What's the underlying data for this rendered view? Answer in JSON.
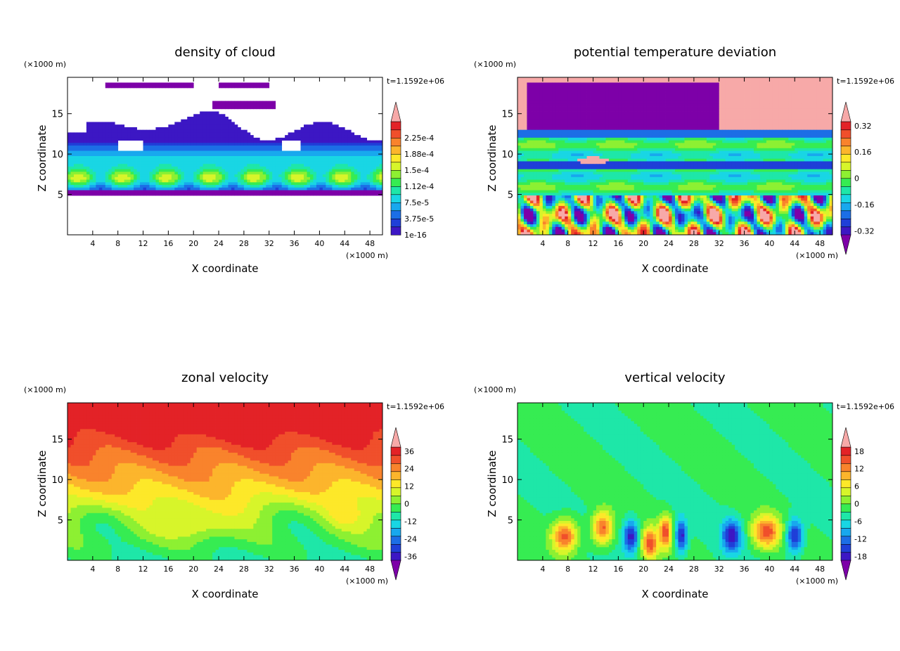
{
  "figure": {
    "time_label": "t=1.1592e+06",
    "unit_label": "(×1000 m)"
  },
  "colormap": [
    "#7d00a8",
    "#3c17c4",
    "#1f3fd8",
    "#1c6ee6",
    "#18a8ee",
    "#19d6e4",
    "#1ee7a8",
    "#36ec52",
    "#8df032",
    "#d7f52a",
    "#fde829",
    "#fcb52c",
    "#f9832c",
    "#f04f2b",
    "#e32227",
    "#f7a9a8"
  ],
  "chart_data": [
    {
      "type": "heatmap",
      "title": "density of cloud",
      "xlabel": "X coordinate",
      "ylabel": "Z coordinate",
      "x_unit": "(×1000 m)",
      "y_unit": "(×1000 m)",
      "xlim": [
        0,
        50
      ],
      "ylim": [
        0,
        19.5
      ],
      "x_ticks": [
        4,
        8,
        12,
        16,
        20,
        24,
        28,
        32,
        36,
        40,
        44,
        48
      ],
      "y_ticks": [
        5,
        10,
        15
      ],
      "time": "t=1.1592e+06",
      "colorbar": {
        "labels": [
          "1e-16",
          "3.75e-5",
          "7.5e-5",
          "1.12e-4",
          "1.5e-4",
          "1.88e-4",
          "2.25e-4"
        ],
        "range": [
          0,
          0.000262
        ],
        "over_arrow": true,
        "under_arrow": false
      },
      "field": "cloud",
      "description_values": {
        "cloud_base": 5,
        "cloud_top": 19
      }
    },
    {
      "type": "heatmap",
      "title": "potential temperature deviation",
      "xlabel": "X coordinate",
      "ylabel": "Z coordinate",
      "x_unit": "(×1000 m)",
      "y_unit": "(×1000 m)",
      "xlim": [
        0,
        50
      ],
      "ylim": [
        0,
        19.5
      ],
      "x_ticks": [
        4,
        8,
        12,
        16,
        20,
        24,
        28,
        32,
        36,
        40,
        44,
        48
      ],
      "y_ticks": [
        5,
        10,
        15
      ],
      "time": "t=1.1592e+06",
      "colorbar": {
        "labels": [
          "-0.32",
          "-0.16",
          "0",
          "0.16",
          "0.32"
        ],
        "range": [
          -0.4,
          0.4
        ],
        "over_arrow": true,
        "under_arrow": true
      },
      "field": "theta"
    },
    {
      "type": "heatmap",
      "title": "zonal velocity",
      "xlabel": "X coordinate",
      "ylabel": "Z coordinate",
      "x_unit": "(×1000 m)",
      "y_unit": "(×1000 m)",
      "xlim": [
        0,
        50
      ],
      "ylim": [
        0,
        19.5
      ],
      "x_ticks": [
        4,
        8,
        12,
        16,
        20,
        24,
        28,
        32,
        36,
        40,
        44,
        48
      ],
      "y_ticks": [
        5,
        10,
        15
      ],
      "time": "t=1.1592e+06",
      "colorbar": {
        "labels": [
          "-36",
          "-24",
          "-12",
          "0",
          "12",
          "24",
          "36"
        ],
        "range": [
          -42,
          42
        ],
        "over_arrow": true,
        "under_arrow": true
      },
      "field": "zonal"
    },
    {
      "type": "heatmap",
      "title": "vertical velocity",
      "xlabel": "X coordinate",
      "ylabel": "Z coordinate",
      "x_unit": "(×1000 m)",
      "y_unit": "(×1000 m)",
      "xlim": [
        0,
        50
      ],
      "ylim": [
        0,
        19.5
      ],
      "x_ticks": [
        4,
        8,
        12,
        16,
        20,
        24,
        28,
        32,
        36,
        40,
        44,
        48
      ],
      "y_ticks": [
        5,
        10,
        15
      ],
      "time": "t=1.1592e+06",
      "colorbar": {
        "labels": [
          "-18",
          "-12",
          "-6",
          "0",
          "6",
          "12",
          "18"
        ],
        "range": [
          -21,
          21
        ],
        "over_arrow": true,
        "under_arrow": true
      },
      "field": "vertical"
    }
  ]
}
